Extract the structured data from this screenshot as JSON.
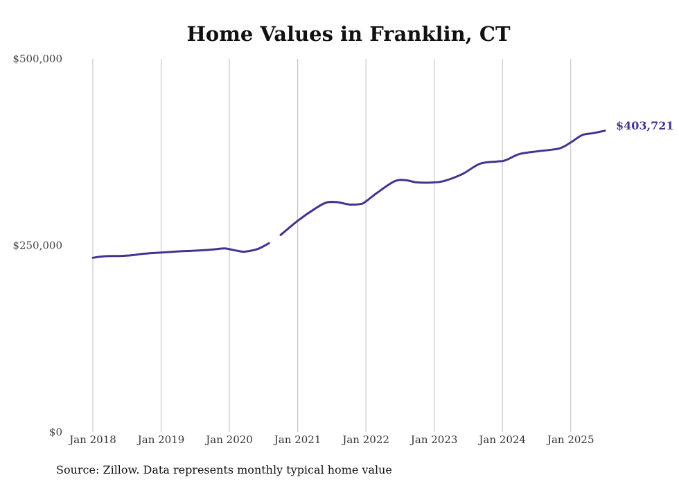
{
  "chart_data": {
    "type": "line",
    "title": "Home Values in Franklin, CT",
    "xlabel": "",
    "ylabel": "",
    "ylim": [
      0,
      500000
    ],
    "yticks": [
      {
        "value": 0,
        "label": "$0"
      },
      {
        "value": 250000,
        "label": "$250,000"
      },
      {
        "value": 500000,
        "label": "$500,000"
      }
    ],
    "xticks": [
      {
        "value": 2018,
        "label": "Jan 2018"
      },
      {
        "value": 2019,
        "label": "Jan 2019"
      },
      {
        "value": 2020,
        "label": "Jan 2020"
      },
      {
        "value": 2021,
        "label": "Jan 2021"
      },
      {
        "value": 2022,
        "label": "Jan 2022"
      },
      {
        "value": 2023,
        "label": "Jan 2023"
      },
      {
        "value": 2024,
        "label": "Jan 2024"
      },
      {
        "value": 2025,
        "label": "Jan 2025"
      }
    ],
    "xlim": [
      2018,
      2025.5
    ],
    "grid": "vertical",
    "line_color": "#3d3590",
    "end_label": "$403,721",
    "segments": [
      [
        {
          "x": 2018.0,
          "y": 233500
        },
        {
          "x": 2018.17,
          "y": 235500
        },
        {
          "x": 2018.42,
          "y": 236000
        },
        {
          "x": 2018.58,
          "y": 237000
        },
        {
          "x": 2018.75,
          "y": 239000
        },
        {
          "x": 2019.0,
          "y": 240500
        },
        {
          "x": 2019.25,
          "y": 242000
        },
        {
          "x": 2019.5,
          "y": 243000
        },
        {
          "x": 2019.75,
          "y": 244500
        },
        {
          "x": 2019.92,
          "y": 246000
        },
        {
          "x": 2020.0,
          "y": 245000
        },
        {
          "x": 2020.17,
          "y": 242000
        },
        {
          "x": 2020.25,
          "y": 242000
        },
        {
          "x": 2020.42,
          "y": 245500
        },
        {
          "x": 2020.58,
          "y": 253000
        }
      ],
      [
        {
          "x": 2020.75,
          "y": 264000
        },
        {
          "x": 2021.0,
          "y": 283000
        },
        {
          "x": 2021.25,
          "y": 299000
        },
        {
          "x": 2021.42,
          "y": 307500
        },
        {
          "x": 2021.58,
          "y": 308000
        },
        {
          "x": 2021.75,
          "y": 305000
        },
        {
          "x": 2021.92,
          "y": 305500
        },
        {
          "x": 2022.0,
          "y": 309000
        },
        {
          "x": 2022.17,
          "y": 321000
        },
        {
          "x": 2022.42,
          "y": 336000
        },
        {
          "x": 2022.58,
          "y": 337500
        },
        {
          "x": 2022.75,
          "y": 334500
        },
        {
          "x": 2023.0,
          "y": 334500
        },
        {
          "x": 2023.17,
          "y": 337000
        },
        {
          "x": 2023.42,
          "y": 346000
        },
        {
          "x": 2023.67,
          "y": 359500
        },
        {
          "x": 2023.92,
          "y": 362500
        },
        {
          "x": 2024.0,
          "y": 363000
        },
        {
          "x": 2024.08,
          "y": 365500
        },
        {
          "x": 2024.25,
          "y": 372500
        },
        {
          "x": 2024.5,
          "y": 376000
        },
        {
          "x": 2024.83,
          "y": 380000
        },
        {
          "x": 2025.0,
          "y": 388000
        },
        {
          "x": 2025.17,
          "y": 398000
        },
        {
          "x": 2025.33,
          "y": 400500
        },
        {
          "x": 2025.5,
          "y": 403721
        }
      ]
    ]
  },
  "footer": {
    "source": "Source: Zillow. Data represents monthly typical home value"
  }
}
